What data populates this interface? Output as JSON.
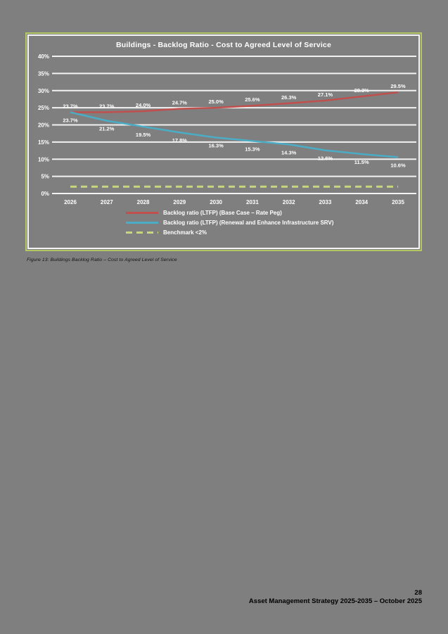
{
  "page": {
    "background": "#7f7f7f",
    "caption": "Figure 13: Buildings Backlog Ratio – Cost to Agreed Level of Service",
    "page_number": "28",
    "footer": "Asset Management Strategy 2025-2035 – October 2025"
  },
  "chart_data": {
    "type": "line",
    "title": "Buildings - Backlog Ratio - Cost to Agreed Level of Service",
    "x_labels": [
      "2026",
      "2027",
      "2028",
      "2029",
      "2030",
      "2031",
      "2032",
      "2033",
      "2034",
      "2035"
    ],
    "ylim": [
      0,
      40
    ],
    "ytick_labels": [
      "40%",
      "35%",
      "30%",
      "25%",
      "20%",
      "15%",
      "10%",
      "5%",
      "0%"
    ],
    "grid": true,
    "legend_position": "bottom-left",
    "colors": {
      "grid": "#f2f2f2",
      "text": "#ffffff",
      "border_outer": "#b3c765",
      "border_inner": "#ffffff",
      "plot_background": "#7f7f7f"
    },
    "series": [
      {
        "name": "Backlog ratio (LTFP) (Base Case – Rate Peg)",
        "color": "#c0504d",
        "dash": false,
        "show_labels": true,
        "label_position": "above",
        "values": [
          23.7,
          23.7,
          24.0,
          24.7,
          25.0,
          25.6,
          26.3,
          27.1,
          28.3,
          29.5
        ]
      },
      {
        "name": "Backlog ratio (LTFP) (Renewal and Enhance Infrastructure SRV)",
        "color": "#4bacc6",
        "dash": false,
        "show_labels": true,
        "label_position": "below",
        "values": [
          23.7,
          21.2,
          19.5,
          17.8,
          16.3,
          15.3,
          14.3,
          12.6,
          11.5,
          10.6
        ]
      },
      {
        "name": "Benchmark <2%",
        "color": "#c6d77f",
        "dash": true,
        "show_labels": false,
        "label_position": "none",
        "values": [
          2,
          2,
          2,
          2,
          2,
          2,
          2,
          2,
          2,
          2
        ]
      }
    ]
  }
}
